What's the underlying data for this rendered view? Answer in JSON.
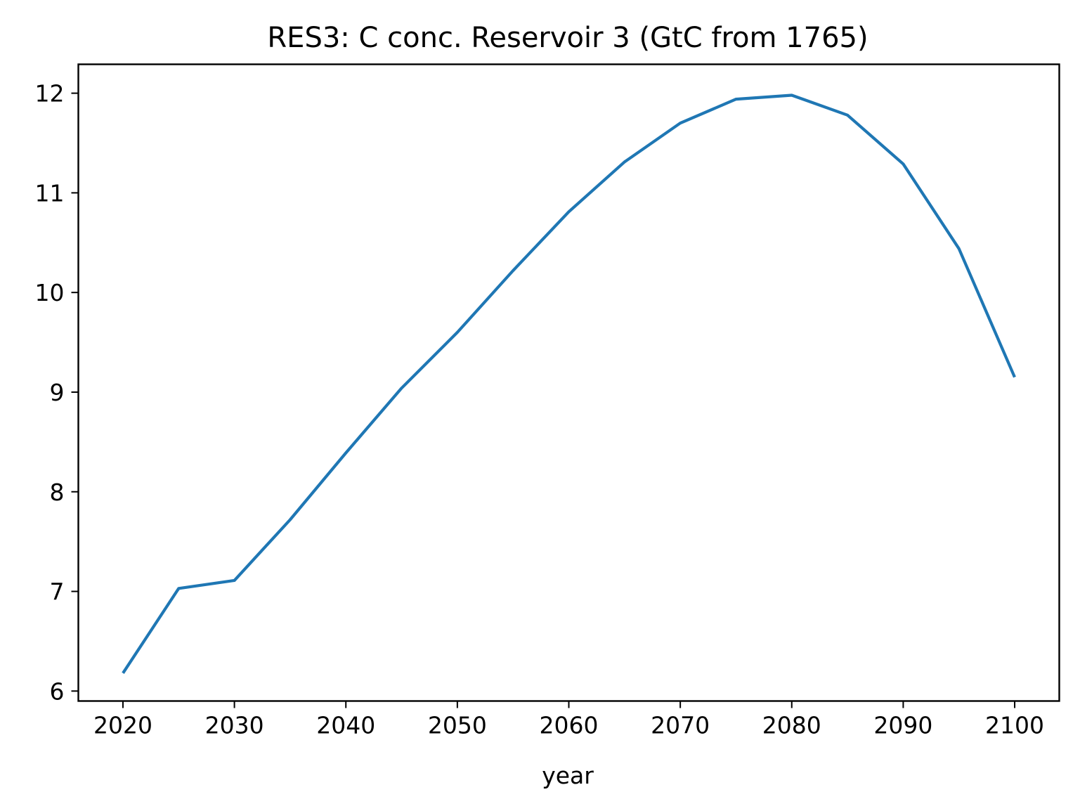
{
  "chart_data": {
    "type": "line",
    "title": "RES3: C conc. Reservoir 3 (GtC from 1765)",
    "xlabel": "year",
    "ylabel": "",
    "xlim": [
      2016,
      2104
    ],
    "ylim": [
      5.9,
      12.29
    ],
    "grid": false,
    "xticks": [
      2020,
      2030,
      2040,
      2050,
      2060,
      2070,
      2080,
      2090,
      2100
    ],
    "yticks": [
      6,
      7,
      8,
      9,
      10,
      11,
      12
    ],
    "series": [
      {
        "color": "#1f77b4",
        "x": [
          2020,
          2025,
          2030,
          2035,
          2040,
          2045,
          2050,
          2055,
          2060,
          2065,
          2070,
          2075,
          2080,
          2085,
          2090,
          2095,
          2100
        ],
        "values": [
          6.18,
          7.03,
          7.11,
          7.72,
          8.39,
          9.04,
          9.6,
          10.22,
          10.81,
          11.31,
          11.7,
          11.94,
          11.98,
          11.78,
          11.29,
          10.44,
          9.15
        ]
      }
    ]
  }
}
